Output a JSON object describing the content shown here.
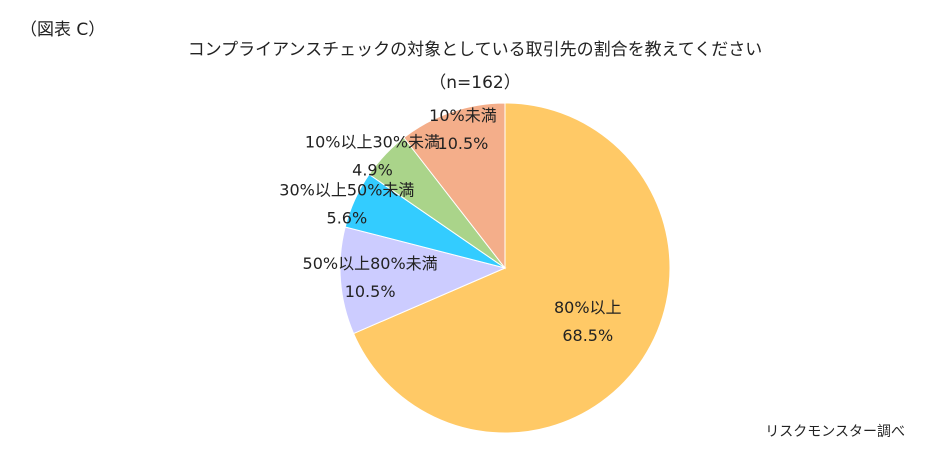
{
  "figure_label": "（図表 C）",
  "source": "リスクモンスター調べ",
  "chart_data": {
    "type": "pie",
    "title": "コンプライアンスチェックの対象としている取引先の割合を教えてください",
    "subtitle": "（n=162）",
    "categories": [
      "80%以上",
      "50%以上80%未満",
      "30%以上50%未満",
      "10%以上30%未満",
      "10%未満"
    ],
    "values": [
      68.5,
      10.5,
      5.6,
      4.9,
      10.5
    ],
    "value_labels": [
      "68.5%",
      "10.5%",
      "5.6%",
      "4.9%",
      "10.5%"
    ],
    "colors": [
      "#ffc966",
      "#ccccff",
      "#33ccff",
      "#aad48a",
      "#f4ae8a"
    ]
  }
}
